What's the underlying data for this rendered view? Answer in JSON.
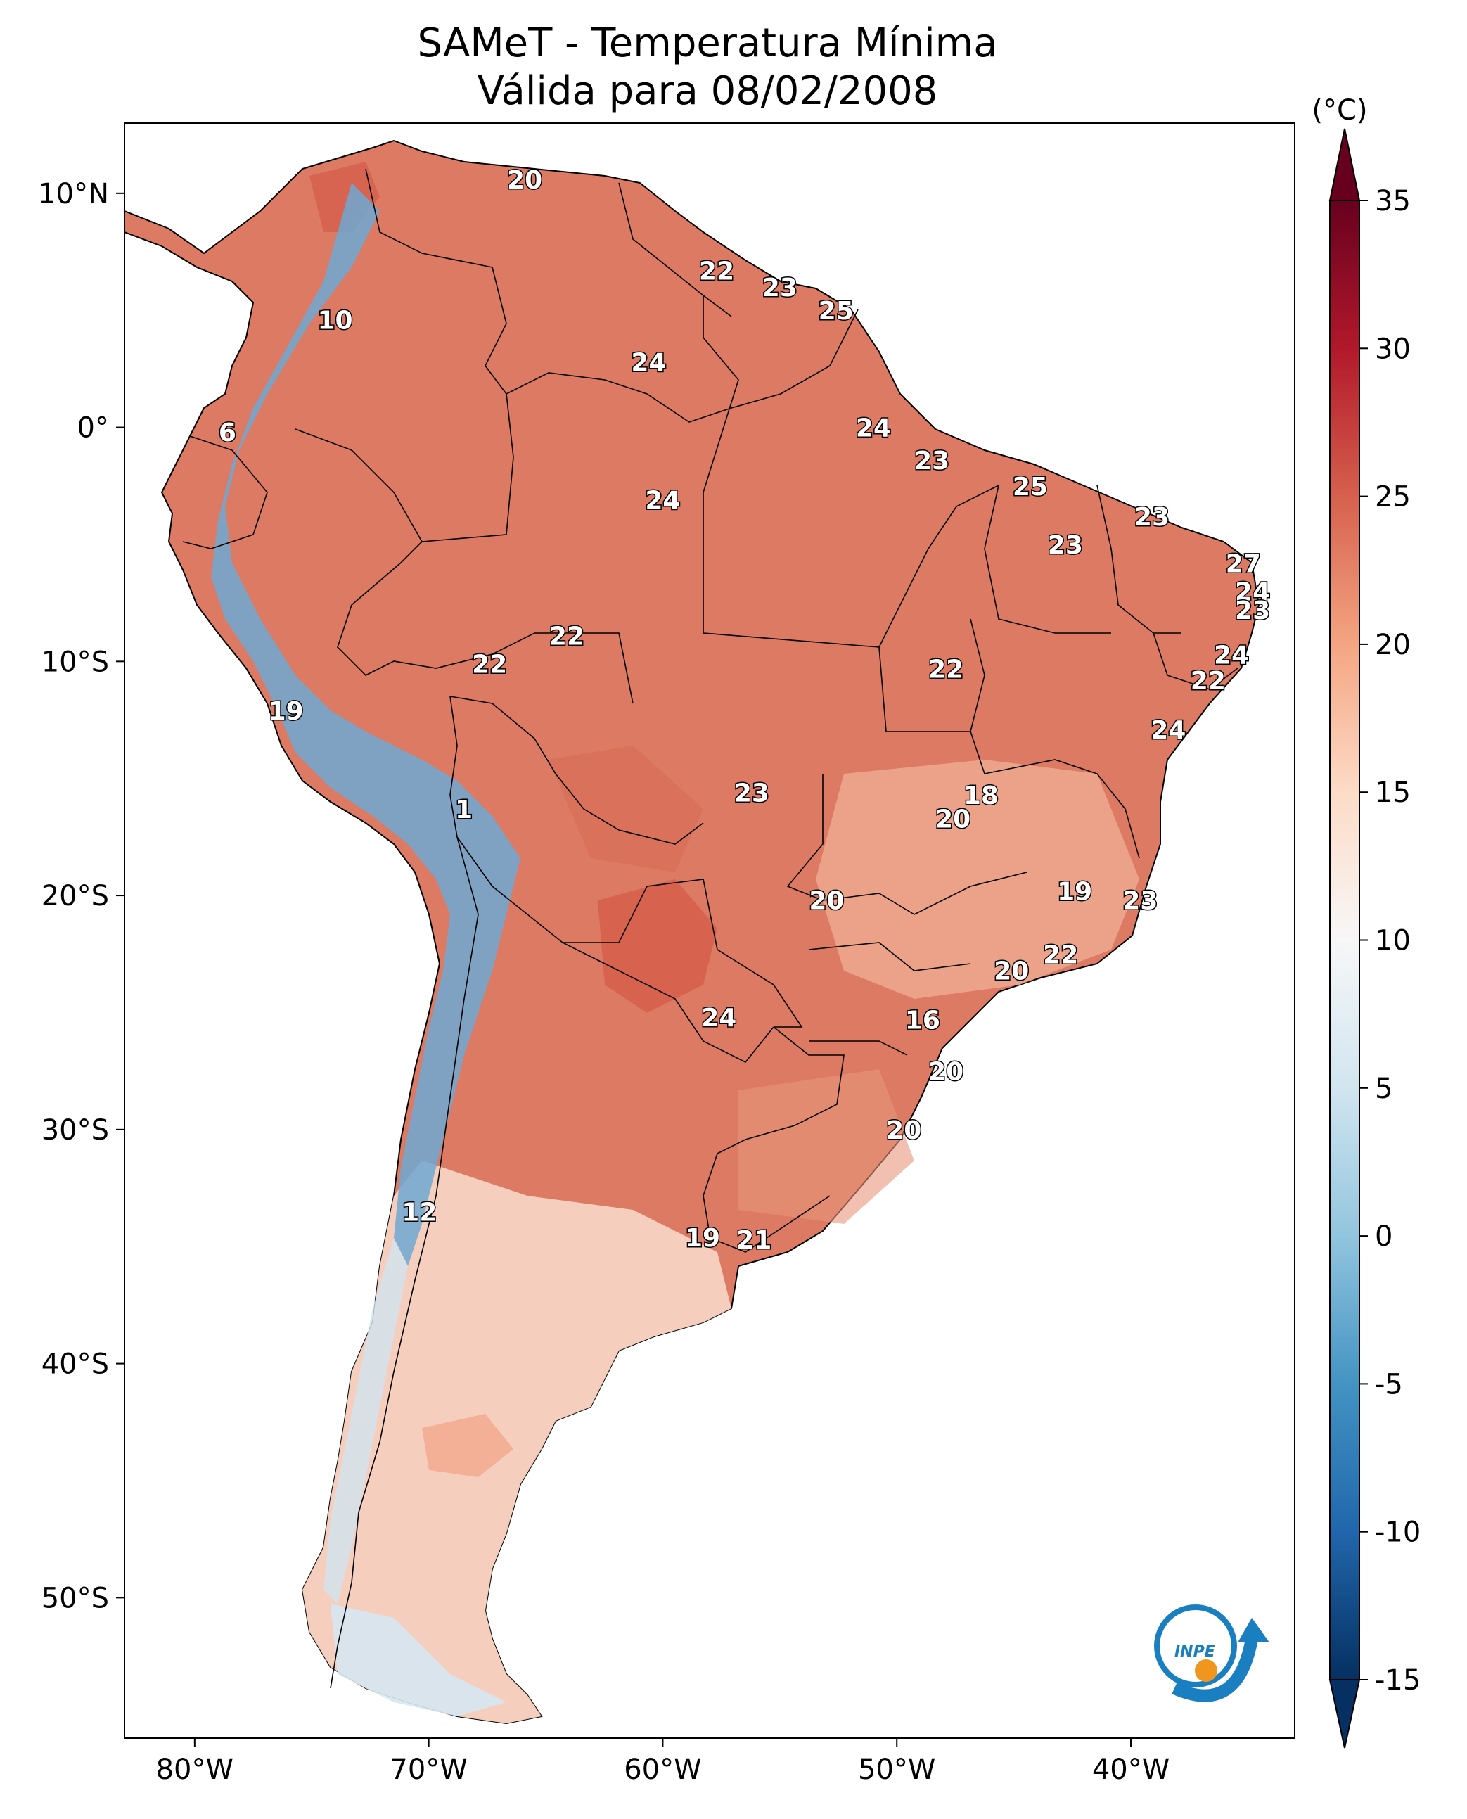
{
  "title": {
    "line1": "SAMeT - Temperatura Mínima",
    "line2": "Válida para 08/02/2008"
  },
  "map": {
    "lon_range": [
      -83,
      -33
    ],
    "lat_range": [
      -56,
      13
    ],
    "lon_ticks": [
      {
        "value": -80,
        "label": "80°W"
      },
      {
        "value": -70,
        "label": "70°W"
      },
      {
        "value": -60,
        "label": "60°W"
      },
      {
        "value": -50,
        "label": "50°W"
      },
      {
        "value": -40,
        "label": "40°W"
      }
    ],
    "lat_ticks": [
      {
        "value": 10,
        "label": "10°N"
      },
      {
        "value": 0,
        "label": "0°"
      },
      {
        "value": -10,
        "label": "10°S"
      },
      {
        "value": -20,
        "label": "20°S"
      },
      {
        "value": -30,
        "label": "30°S"
      },
      {
        "value": -40,
        "label": "40°S"
      },
      {
        "value": -50,
        "label": "50°S"
      }
    ],
    "values": [
      {
        "label": "20",
        "lon": -65.9,
        "lat": 10.6
      },
      {
        "label": "22",
        "lon": -57.7,
        "lat": 6.7
      },
      {
        "label": "23",
        "lon": -55.0,
        "lat": 6.0
      },
      {
        "label": "25",
        "lon": -52.6,
        "lat": 5.0
      },
      {
        "label": "10",
        "lon": -74.0,
        "lat": 4.6
      },
      {
        "label": "24",
        "lon": -60.6,
        "lat": 2.8
      },
      {
        "label": "6",
        "lon": -78.6,
        "lat": -0.2
      },
      {
        "label": "24",
        "lon": -51.0,
        "lat": 0.0
      },
      {
        "label": "23",
        "lon": -48.5,
        "lat": -1.4
      },
      {
        "label": "25",
        "lon": -44.3,
        "lat": -2.5
      },
      {
        "label": "24",
        "lon": -60.0,
        "lat": -3.1
      },
      {
        "label": "23",
        "lon": -39.1,
        "lat": -3.8
      },
      {
        "label": "23",
        "lon": -42.8,
        "lat": -5.0
      },
      {
        "label": "27",
        "lon": -35.2,
        "lat": -5.8
      },
      {
        "label": "24",
        "lon": -34.8,
        "lat": -7.0
      },
      {
        "label": "23",
        "lon": -34.8,
        "lat": -7.8
      },
      {
        "label": "22",
        "lon": -64.1,
        "lat": -8.9
      },
      {
        "label": "24",
        "lon": -35.7,
        "lat": -9.7
      },
      {
        "label": "22",
        "lon": -67.4,
        "lat": -10.1
      },
      {
        "label": "22",
        "lon": -47.9,
        "lat": -10.3
      },
      {
        "label": "22",
        "lon": -36.7,
        "lat": -10.8
      },
      {
        "label": "19",
        "lon": -76.1,
        "lat": -12.1
      },
      {
        "label": "24",
        "lon": -38.4,
        "lat": -12.9
      },
      {
        "label": "23",
        "lon": -56.2,
        "lat": -15.6
      },
      {
        "label": "18",
        "lon": -46.4,
        "lat": -15.7
      },
      {
        "label": "1",
        "lon": -68.5,
        "lat": -16.3
      },
      {
        "label": "20",
        "lon": -47.6,
        "lat": -16.7
      },
      {
        "label": "19",
        "lon": -42.4,
        "lat": -19.8
      },
      {
        "label": "20",
        "lon": -53.0,
        "lat": -20.2
      },
      {
        "label": "23",
        "lon": -39.6,
        "lat": -20.2
      },
      {
        "label": "22",
        "lon": -43.0,
        "lat": -22.5
      },
      {
        "label": "20",
        "lon": -45.1,
        "lat": -23.2
      },
      {
        "label": "24",
        "lon": -57.6,
        "lat": -25.2
      },
      {
        "label": "16",
        "lon": -48.9,
        "lat": -25.3
      },
      {
        "label": "20",
        "lon": -47.9,
        "lat": -27.5
      },
      {
        "label": "20",
        "lon": -49.7,
        "lat": -30.0
      },
      {
        "label": "12",
        "lon": -70.4,
        "lat": -33.5
      },
      {
        "label": "19",
        "lon": -58.3,
        "lat": -34.6
      },
      {
        "label": "21",
        "lon": -56.1,
        "lat": -34.7
      }
    ]
  },
  "colorbar": {
    "unit": "(°C)",
    "min": -15,
    "max": 35,
    "ticks": [
      {
        "value": 35,
        "label": "35"
      },
      {
        "value": 30,
        "label": "30"
      },
      {
        "value": 25,
        "label": "25"
      },
      {
        "value": 20,
        "label": "20"
      },
      {
        "value": 15,
        "label": "15"
      },
      {
        "value": 10,
        "label": "10"
      },
      {
        "value": 5,
        "label": "5"
      },
      {
        "value": 0,
        "label": "0"
      },
      {
        "value": -5,
        "label": "-5"
      },
      {
        "value": -10,
        "label": "-10"
      },
      {
        "value": -15,
        "label": "-15"
      }
    ],
    "colors": [
      "#053061",
      "#2166ac",
      "#4393c3",
      "#92c5de",
      "#d1e5f0",
      "#f7f7f7",
      "#fddbc7",
      "#f4a582",
      "#d6604d",
      "#b2182b",
      "#67001f"
    ]
  },
  "logo": {
    "text": "INPE",
    "colors": {
      "blue": "#1a7fc1",
      "orange": "#f0951e"
    }
  },
  "fill_colors": {
    "land_warm": "#dd7a63",
    "land_hot": "#d6604d",
    "land_mild": "#f2b49a",
    "land_cool": "#fbe3d6",
    "andes_cold": "#6fa8d2",
    "andes_cool": "#cfe3ef"
  }
}
